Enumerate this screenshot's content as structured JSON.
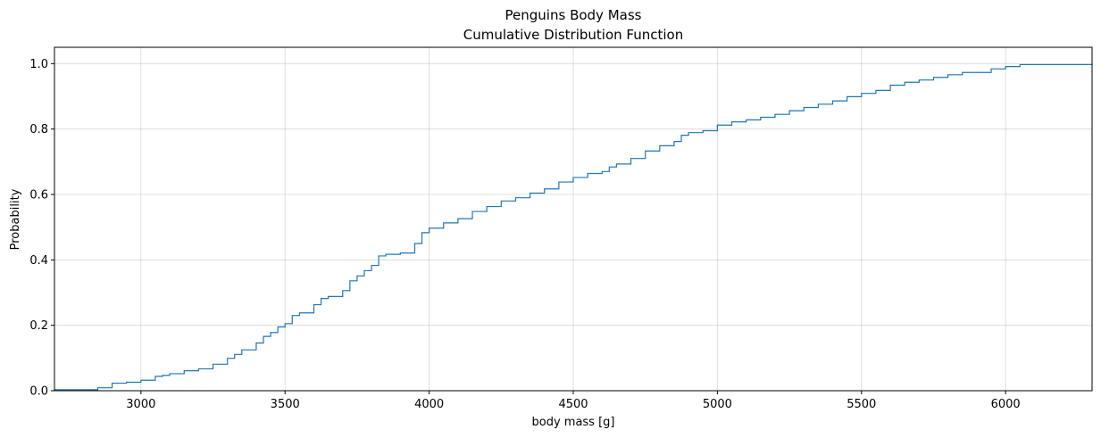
{
  "chart_data": {
    "type": "line",
    "title": "Penguins Body Mass",
    "subtitle": "Cumulative Distribution Function",
    "xlabel": "body mass [g]",
    "ylabel": "Probability",
    "xlim": [
      2700,
      6300
    ],
    "ylim": [
      0,
      1.05
    ],
    "xticks": [
      3000,
      3500,
      4000,
      4500,
      5000,
      5500,
      6000
    ],
    "xtick_labels": [
      "3000",
      "3500",
      "4000",
      "4500",
      "5000",
      "5500",
      "6000"
    ],
    "yticks": [
      0.0,
      0.2,
      0.4,
      0.6,
      0.8,
      1.0
    ],
    "ytick_labels": [
      "0.0",
      "0.2",
      "0.4",
      "0.6",
      "0.8",
      "1.0"
    ],
    "grid": true,
    "line_color": "#1f77b4",
    "series": [
      {
        "step": "post",
        "x": [
          2700,
          2850,
          2900,
          2950,
          3000,
          3050,
          3075,
          3100,
          3150,
          3200,
          3250,
          3300,
          3325,
          3350,
          3400,
          3425,
          3450,
          3475,
          3500,
          3525,
          3550,
          3600,
          3625,
          3650,
          3700,
          3725,
          3750,
          3775,
          3800,
          3825,
          3850,
          3900,
          3950,
          3975,
          4000,
          4050,
          4100,
          4150,
          4200,
          4250,
          4300,
          4350,
          4400,
          4450,
          4500,
          4550,
          4600,
          4625,
          4650,
          4700,
          4750,
          4800,
          4850,
          4875,
          4900,
          4950,
          5000,
          5050,
          5100,
          5150,
          5200,
          5250,
          5300,
          5350,
          5400,
          5450,
          5500,
          5550,
          5600,
          5650,
          5700,
          5750,
          5800,
          5850,
          5950,
          6000,
          6050,
          6300
        ],
        "y": [
          0.003,
          0.009,
          0.023,
          0.026,
          0.032,
          0.044,
          0.047,
          0.052,
          0.061,
          0.067,
          0.081,
          0.099,
          0.111,
          0.125,
          0.146,
          0.166,
          0.178,
          0.195,
          0.205,
          0.23,
          0.238,
          0.263,
          0.282,
          0.288,
          0.306,
          0.336,
          0.351,
          0.367,
          0.383,
          0.412,
          0.417,
          0.421,
          0.45,
          0.483,
          0.497,
          0.513,
          0.526,
          0.548,
          0.563,
          0.58,
          0.59,
          0.604,
          0.617,
          0.638,
          0.652,
          0.664,
          0.67,
          0.684,
          0.693,
          0.71,
          0.733,
          0.749,
          0.762,
          0.781,
          0.789,
          0.795,
          0.812,
          0.822,
          0.828,
          0.836,
          0.845,
          0.856,
          0.866,
          0.876,
          0.886,
          0.899,
          0.909,
          0.918,
          0.934,
          0.943,
          0.95,
          0.958,
          0.966,
          0.973,
          0.984,
          0.991,
          0.997,
          1.0
        ]
      }
    ]
  }
}
